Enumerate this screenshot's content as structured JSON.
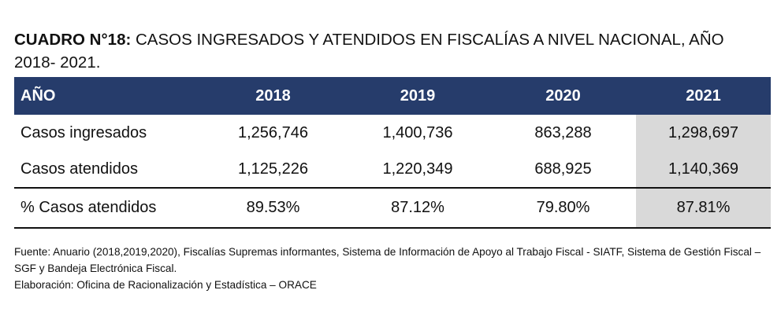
{
  "title": {
    "label": "CUADRO N°18:",
    "text": "CASOS INGRESADOS Y ATENDIDOS EN FISCALÍAS A NIVEL NACIONAL, AÑO 2018- 2021."
  },
  "table": {
    "headers": [
      "AÑO",
      "2018",
      "2019",
      "2020",
      "2021"
    ],
    "rows": [
      {
        "label": "Casos ingresados",
        "values": [
          "1,256,746",
          "1,400,736",
          "863,288",
          "1,298,697"
        ]
      },
      {
        "label": "Casos atendidos",
        "values": [
          "1,125,226",
          "1,220,349",
          "688,925",
          "1,140,369"
        ]
      },
      {
        "label": "% Casos atendidos",
        "values": [
          "89.53%",
          "87.12%",
          "79.80%",
          "87.81%"
        ]
      }
    ]
  },
  "notes": {
    "source": "Fuente: Anuario (2018,2019,2020), Fiscalías Supremas informantes, Sistema de Información de Apoyo al Trabajo Fiscal - SIATF, Sistema de Gestión Fiscal – SGF y Bandeja Electrónica Fiscal.",
    "elaboration": "Elaboración: Oficina de Racionalización y Estadística – ORACE"
  },
  "colors": {
    "header_bg": "#263c6b",
    "header_text": "#ffffff",
    "highlight_column": "#d9d9d9"
  }
}
